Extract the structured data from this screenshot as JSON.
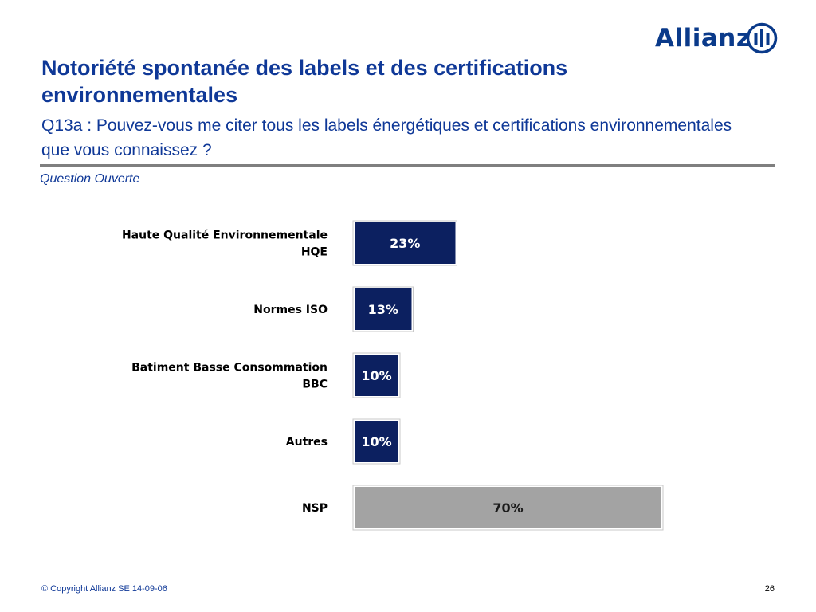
{
  "brand": {
    "name": "Allianz",
    "color": "#0a3a8a"
  },
  "title": "Notoriété spontanée des labels et des certifications environnementales",
  "subtitle": "Q13a : Pouvez-vous me citer tous les labels énergétiques et certifications environnementales que vous connaissez ?",
  "note": "Question Ouverte",
  "footer": {
    "copyright": "© Copyright Allianz SE 14-09-06",
    "page": "26"
  },
  "chart_data": {
    "type": "bar",
    "orientation": "horizontal",
    "categories": [
      [
        "Haute Qualité Environnementale",
        "HQE"
      ],
      [
        "Normes ISO"
      ],
      [
        "Batiment Basse Consommation",
        "BBC"
      ],
      [
        "Autres"
      ],
      [
        "NSP"
      ]
    ],
    "values": [
      23,
      13,
      10,
      10,
      70
    ],
    "labels": [
      "23%",
      "13%",
      "10%",
      "10%",
      "70%"
    ],
    "colors": [
      "#0c2060",
      "#0c2060",
      "#0c2060",
      "#0c2060",
      "#a3a3a3"
    ],
    "label_colors": [
      "#ffffff",
      "#ffffff",
      "#ffffff",
      "#ffffff",
      "#1a1a1a"
    ],
    "xlim": [
      0,
      100
    ],
    "grid": false,
    "legend": "none"
  }
}
